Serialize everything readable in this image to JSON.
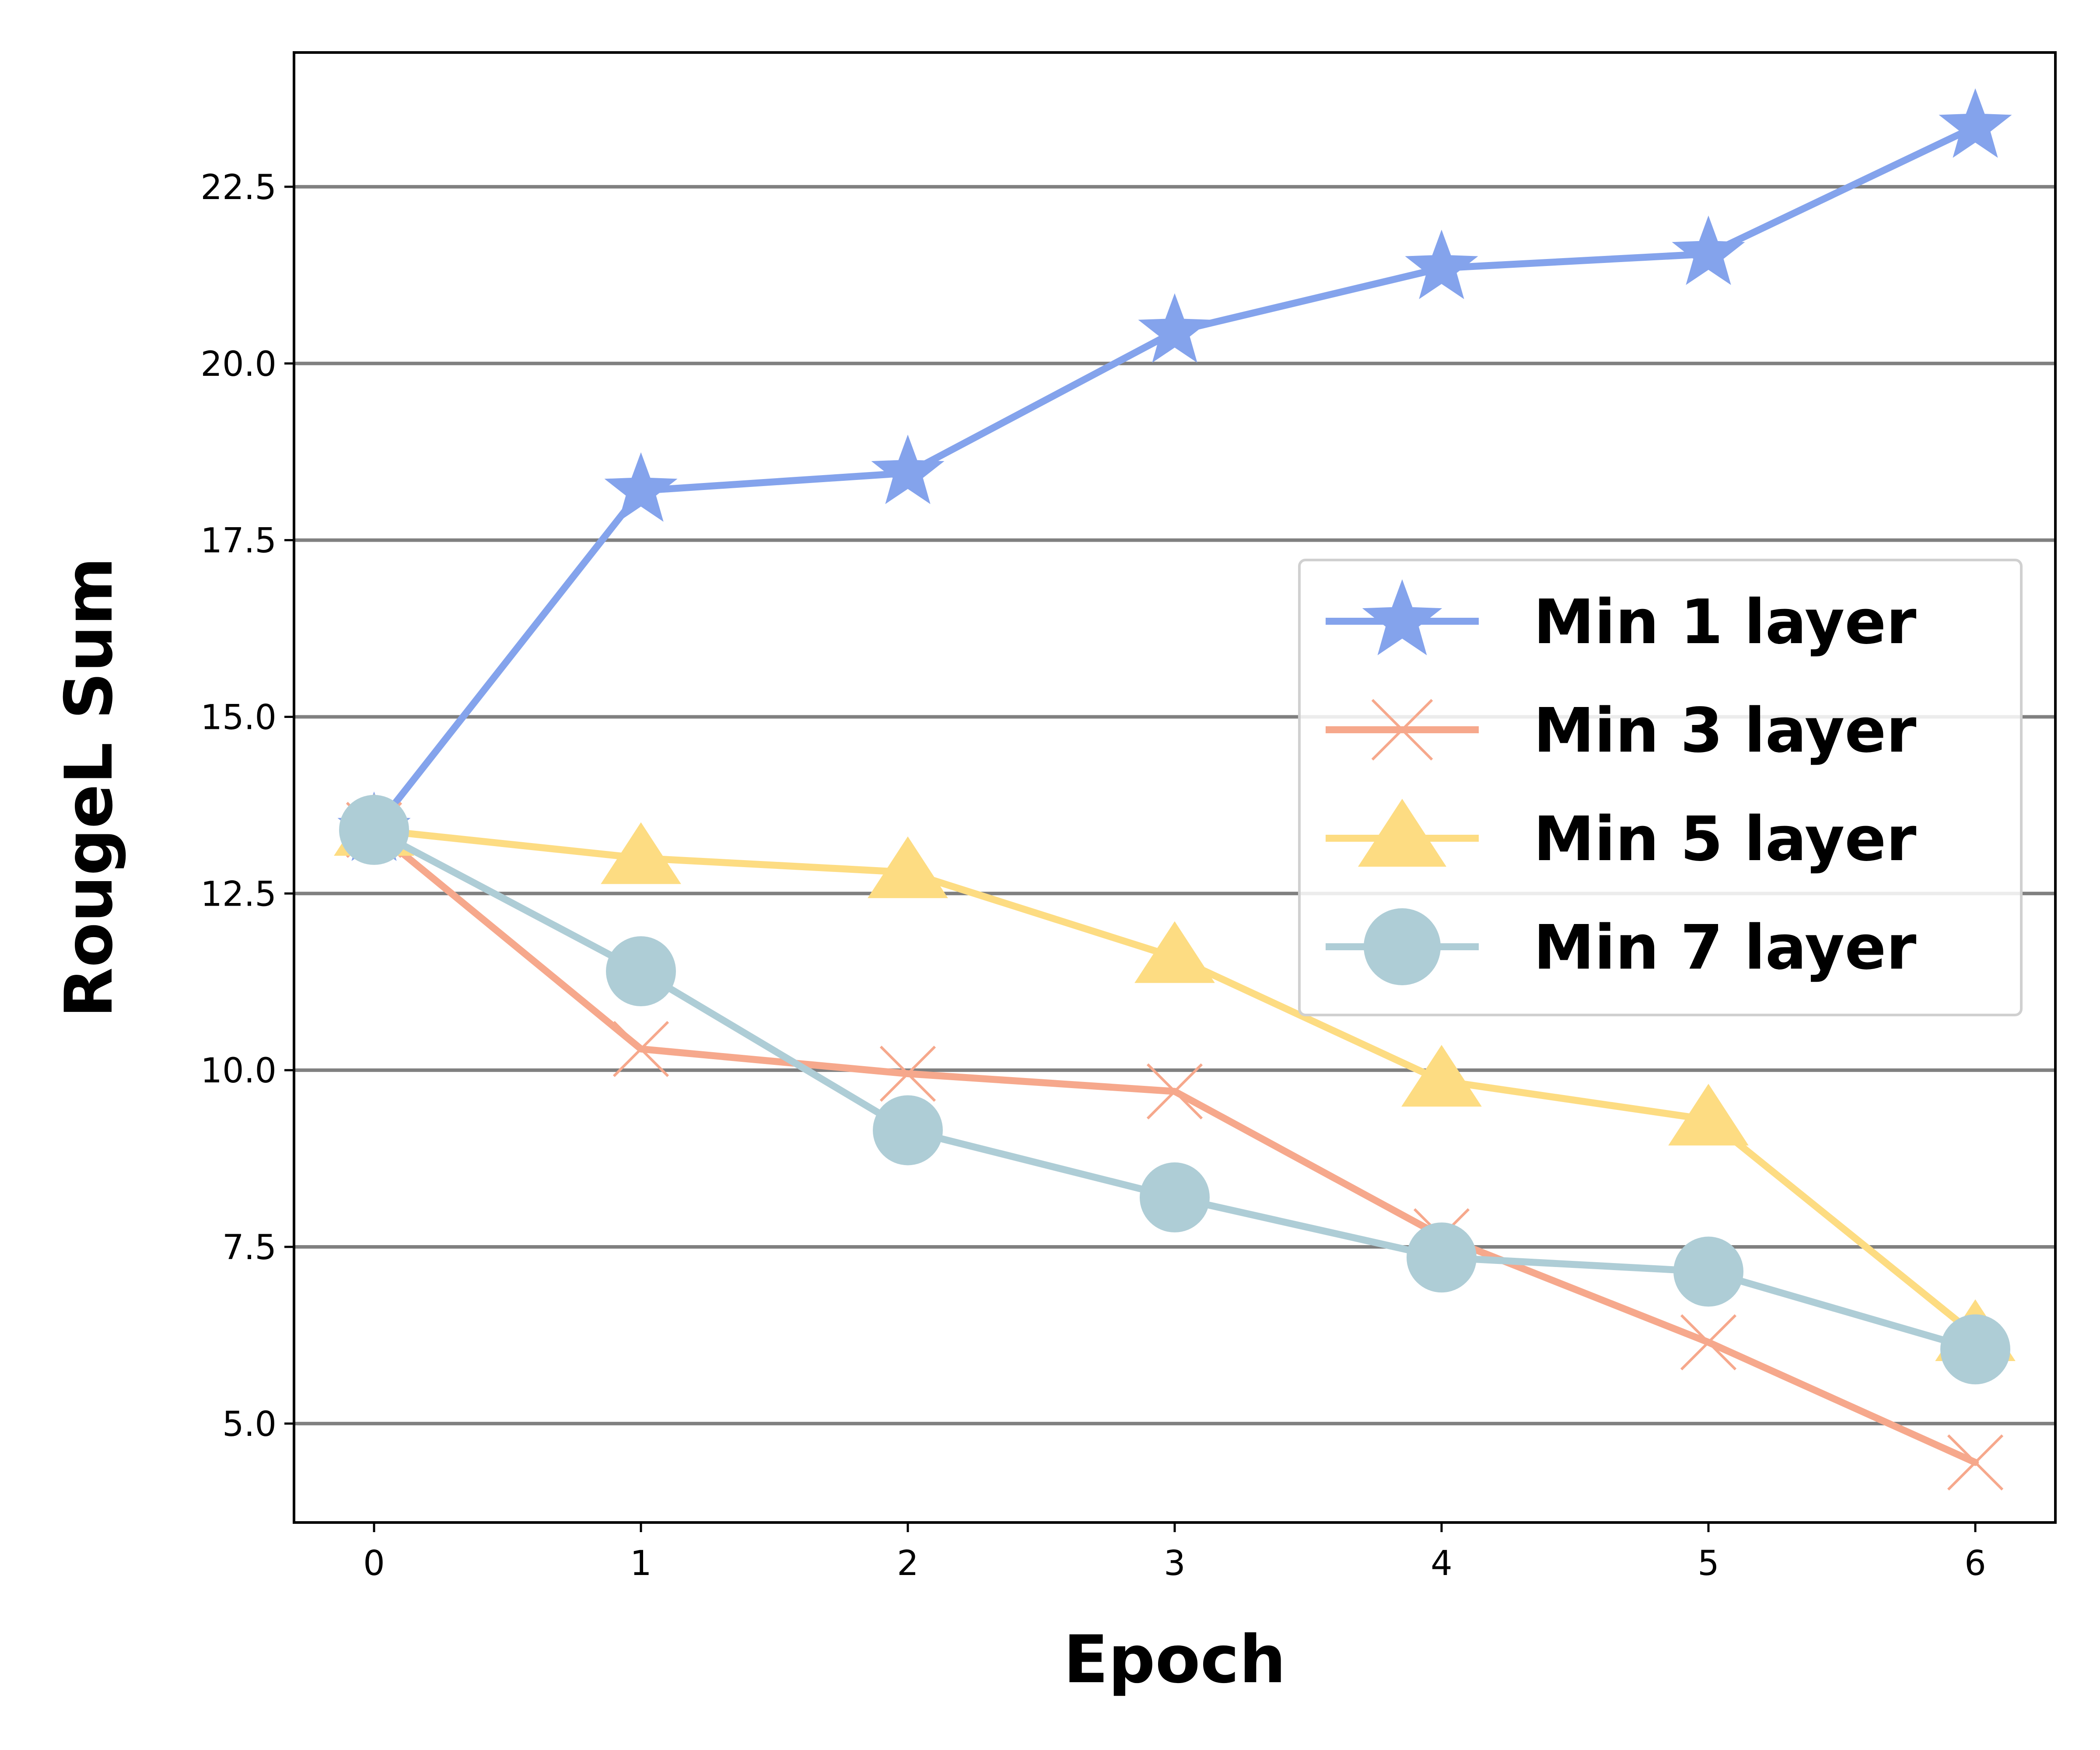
{
  "chart_data": {
    "type": "line",
    "title": "",
    "xlabel": "Epoch",
    "ylabel": "RougeL Sum",
    "x": [
      0,
      1,
      2,
      3,
      4,
      5,
      6
    ],
    "xlim": [
      -0.3,
      6.3
    ],
    "ylim": [
      3.6,
      24.4
    ],
    "xticks": [
      "0",
      "1",
      "2",
      "3",
      "4",
      "5",
      "6"
    ],
    "yticks": [
      "5.0",
      "7.5",
      "10.0",
      "12.5",
      "15.0",
      "17.5",
      "20.0",
      "22.5"
    ],
    "ytick_values": [
      5.0,
      7.5,
      10.0,
      12.5,
      15.0,
      17.5,
      20.0,
      22.5
    ],
    "grid": "horizontal",
    "legend_position": "center-right",
    "series": [
      {
        "name": "Min 1 layer",
        "color": "#84a3ec",
        "marker": "star",
        "values": [
          13.4,
          18.2,
          18.45,
          20.45,
          21.35,
          21.55,
          23.35
        ]
      },
      {
        "name": "Min 3 layer",
        "color": "#f6a88c",
        "marker": "x",
        "values": [
          13.4,
          10.3,
          9.95,
          9.7,
          7.65,
          6.15,
          4.45
        ]
      },
      {
        "name": "Min 5 layer",
        "color": "#fddc82",
        "marker": "triangle",
        "values": [
          13.4,
          13.0,
          12.8,
          11.6,
          9.85,
          9.3,
          6.25
        ]
      },
      {
        "name": "Min 7 layer",
        "color": "#aecdd6",
        "marker": "circle",
        "values": [
          13.4,
          11.4,
          9.15,
          8.2,
          7.35,
          7.15,
          6.05
        ]
      }
    ]
  }
}
